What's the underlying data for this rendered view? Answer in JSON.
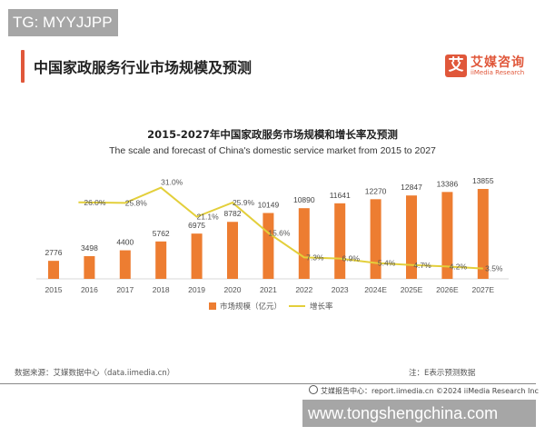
{
  "watermarks": {
    "top": "TG: MYYJJPP",
    "bottom": "www.tongshengchina.com"
  },
  "header": {
    "title": "中国家政服务行业市场规模及预测"
  },
  "logo": {
    "mark": "艾",
    "name_cn": "艾媒咨询",
    "name_en": "iiMedia Research"
  },
  "colors": {
    "bar": "#ED7D31",
    "line": "#E3CF3B",
    "accent": "#E0573A"
  },
  "chart_data": {
    "type": "bar+line",
    "title": "2015-2027年中国家政服务市场规模和增长率及预测",
    "subtitle": "The scale and forecast of China's domestic service market from 2015 to 2027",
    "categories": [
      "2015",
      "2016",
      "2017",
      "2018",
      "2019",
      "2020",
      "2021",
      "2022",
      "2023",
      "2024E",
      "2025E",
      "2026E",
      "2027E"
    ],
    "series": [
      {
        "name": "市场规模（亿元）",
        "type": "bar",
        "values": [
          2776,
          3498,
          4400,
          5762,
          6975,
          8782,
          10149,
          10890,
          11641,
          12270,
          12847,
          13386,
          13855
        ],
        "labels": [
          "2776",
          "3498",
          "4400",
          "5762",
          "6975",
          "8782",
          "10149",
          "10890",
          "11641",
          "12270",
          "12847",
          "13386",
          "13855"
        ]
      },
      {
        "name": "增长率",
        "type": "line",
        "values": [
          null,
          26.0,
          25.8,
          31.0,
          21.1,
          25.9,
          15.6,
          7.3,
          6.9,
          5.4,
          4.7,
          4.2,
          3.5
        ],
        "labels": [
          "",
          "26.0%",
          "25.8%",
          "31.0%",
          "21.1%",
          "25.9%",
          "15.6%",
          "7.3%",
          "6.9%",
          "5.4%",
          "4.7%",
          "4.2%",
          "3.5%"
        ]
      }
    ],
    "legend_position": "bottom",
    "grid": false
  },
  "footer": {
    "source": "数据来源：艾媒数据中心（data.iimedia.cn）",
    "note": "注：E表示预测数据",
    "report": "艾媒报告中心：report.iimedia.cn    ©2024  iiMedia Research  Inc"
  }
}
